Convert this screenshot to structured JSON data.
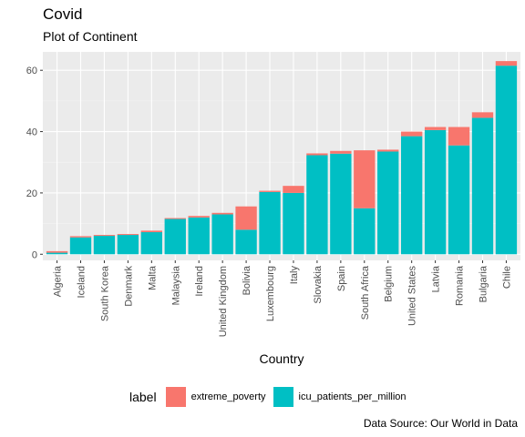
{
  "chart_data": {
    "type": "bar",
    "stacked": true,
    "title": "Covid",
    "subtitle": "Plot of  Continent",
    "xlabel": "Country",
    "ylabel": "",
    "caption": "Data Source: Our World in Data",
    "ylim": [
      -2,
      66
    ],
    "yticks": [
      0,
      20,
      40,
      60
    ],
    "grid": true,
    "legend_position": "bottom",
    "legend_title": "label",
    "categories": [
      "Algeria",
      "Iceland",
      "South Korea",
      "Denmark",
      "Malta",
      "Malaysia",
      "Ireland",
      "United Kingdom",
      "Bolivia",
      "Luxembourg",
      "Italy",
      "Slovakia",
      "Spain",
      "South Africa",
      "Belgium",
      "United States",
      "Latvia",
      "Romania",
      "Bulgaria",
      "Chile"
    ],
    "series": [
      {
        "name": "icu_patients_per_million",
        "color": "#00BFC4",
        "values": [
          0.5,
          5.5,
          6.0,
          6.3,
          7.2,
          11.5,
          12.0,
          13.0,
          8.0,
          20.3,
          20.0,
          32.3,
          32.8,
          15.0,
          33.5,
          38.5,
          40.5,
          35.5,
          44.5,
          61.5
        ]
      },
      {
        "name": "extreme_poverty",
        "color": "#F8766D",
        "values": [
          0.5,
          0.4,
          0.3,
          0.3,
          0.5,
          0.3,
          0.5,
          0.5,
          7.6,
          0.4,
          2.3,
          0.6,
          0.9,
          18.9,
          0.6,
          1.5,
          1.0,
          6.0,
          1.8,
          1.5
        ]
      }
    ]
  }
}
